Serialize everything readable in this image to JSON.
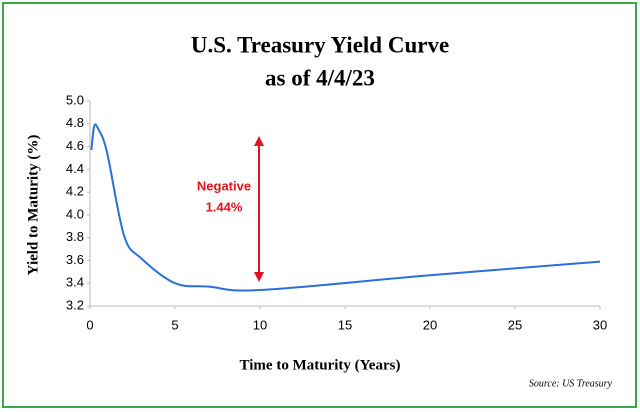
{
  "chart_data": {
    "type": "line",
    "title": "U.S. Treasury Yield Curve",
    "subtitle": "as of 4/4/23",
    "x_label": "Time to Maturity (Years)",
    "y_label": "Yield to Maturity (%)",
    "source": "Source: US Treasury",
    "annotation": [
      "Negative",
      "1.44%"
    ],
    "x": [
      0.083,
      0.25,
      0.5,
      1,
      2,
      3,
      5,
      7,
      10,
      20,
      30
    ],
    "series": [
      {
        "name": "Yield",
        "color": "#2b6fdb",
        "values": [
          4.57,
          4.78,
          4.75,
          4.55,
          3.82,
          3.62,
          3.4,
          3.37,
          3.34,
          3.47,
          3.59
        ]
      }
    ],
    "xlim": [
      0,
      30
    ],
    "xticks": [
      0,
      5,
      10,
      15,
      20,
      25,
      30
    ],
    "ylim": [
      3.2,
      5.0
    ],
    "yticks": [
      3.2,
      3.4,
      3.6,
      3.8,
      {
        "value": 4,
        "label": "4.0"
      },
      4.2,
      4.4,
      4.6,
      4.8,
      {
        "value": 5,
        "label": "5.0"
      }
    ]
  }
}
